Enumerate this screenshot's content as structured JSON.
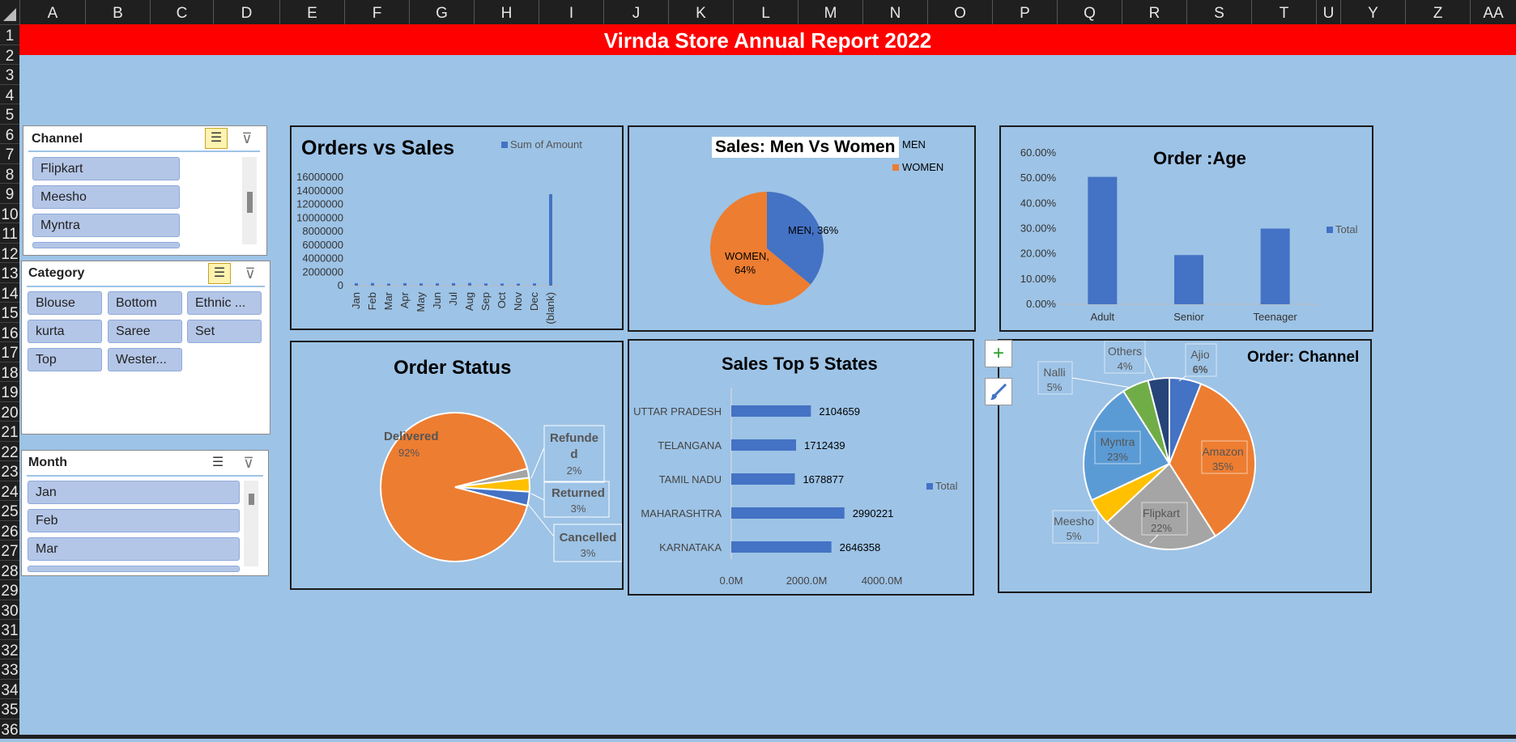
{
  "sheet": {
    "columns": [
      "A",
      "B",
      "C",
      "D",
      "E",
      "F",
      "G",
      "H",
      "I",
      "J",
      "K",
      "L",
      "M",
      "N",
      "O",
      "P",
      "Q",
      "R",
      "S",
      "T",
      "U",
      "Y",
      "Z",
      "AA"
    ],
    "rows": [
      "1",
      "2",
      "3",
      "4",
      "5",
      "6",
      "7",
      "8",
      "9",
      "10",
      "11",
      "12",
      "13",
      "14",
      "15",
      "16",
      "17",
      "18",
      "19",
      "20",
      "21",
      "22",
      "23",
      "24",
      "25",
      "26",
      "27",
      "28",
      "29",
      "30",
      "31",
      "32",
      "33",
      "34",
      "35",
      "36"
    ]
  },
  "report_title": "Virnda Store Annual Report 2022",
  "slicers": {
    "channel": {
      "title": "Channel",
      "items": [
        "Flipkart",
        "Meesho",
        "Myntra"
      ]
    },
    "category": {
      "title": "Category",
      "items": [
        "Blouse",
        "Bottom",
        "Ethnic ...",
        "kurta",
        "Saree",
        "Set",
        "Top",
        "Wester..."
      ]
    },
    "month": {
      "title": "Month",
      "items": [
        "Jan",
        "Feb",
        "Mar"
      ]
    }
  },
  "icons": {
    "multi_select": "multi-select-icon",
    "clear_filter": "clear-filter-icon",
    "add": "plus-icon",
    "style": "brush-icon"
  },
  "colors": {
    "title_bg": "#ff0000",
    "sheet_bg": "#9dc3e6",
    "blue": "#4472c4",
    "orange": "#ed7d31",
    "gray": "#a5a5a5",
    "yellow": "#ffc000",
    "lightblue": "#5b9bd5",
    "green": "#70ad47",
    "navy": "#264478"
  },
  "chart_data": [
    {
      "type": "bar",
      "title": "Orders vs Sales",
      "legend": "Sum of Amount",
      "categories": [
        "Jan",
        "Feb",
        "Mar",
        "Apr",
        "May",
        "Jun",
        "Jul",
        "Aug",
        "Sep",
        "Oct",
        "Nov",
        "Dec",
        "(blank)"
      ],
      "values": [
        350000,
        380000,
        300000,
        360000,
        330000,
        340000,
        370000,
        400000,
        320000,
        310000,
        300000,
        330000,
        13500000
      ],
      "yticks": [
        "16000000",
        "14000000",
        "12000000",
        "10000000",
        "8000000",
        "6000000",
        "4000000",
        "2000000",
        "0"
      ],
      "ylim": [
        0,
        16000000
      ]
    },
    {
      "type": "pie",
      "title": "Sales: Men Vs Women",
      "legend": [
        "MEN",
        "WOMEN"
      ],
      "slices": [
        {
          "name": "MEN",
          "value": 36,
          "label": "MEN, 36%"
        },
        {
          "name": "WOMEN",
          "value": 64,
          "label_line1": "WOMEN,",
          "label_line2": "64%"
        }
      ]
    },
    {
      "type": "bar",
      "title": "Order :Age",
      "legend": "Total",
      "categories": [
        "Adult",
        "Senior",
        "Teenager"
      ],
      "values": [
        50.5,
        19.5,
        30
      ],
      "yticks": [
        "60.00%",
        "50.00%",
        "40.00%",
        "30.00%",
        "20.00%",
        "10.00%",
        "0.00%"
      ],
      "ylim": [
        0,
        60
      ]
    },
    {
      "type": "pie",
      "title": "Order Status",
      "slices": [
        {
          "name": "Delivered",
          "value": 92,
          "pct": "92%"
        },
        {
          "name": "Refunded",
          "value": 2,
          "pct": "2%",
          "label_line1": "Refunde",
          "label_line2": "d"
        },
        {
          "name": "Returned",
          "value": 3,
          "pct": "3%"
        },
        {
          "name": "Cancelled",
          "value": 3,
          "pct": "3%"
        }
      ]
    },
    {
      "type": "bar",
      "orientation": "horizontal",
      "title": "Sales Top 5 States",
      "legend": "Total",
      "categories": [
        "UTTAR PRADESH",
        "TELANGANA",
        "TAMIL NADU",
        "MAHARASHTRA",
        "KARNATAKA"
      ],
      "values": [
        2104659,
        1712439,
        1678877,
        2990221,
        2646358
      ],
      "value_labels": [
        "2104659",
        "1712439",
        "1678877",
        "2990221",
        "2646358"
      ],
      "xticks": [
        "0.0M",
        "2000.0M",
        "4000.0M"
      ]
    },
    {
      "type": "pie",
      "title": "Order: Channel",
      "slices": [
        {
          "name": "Ajio",
          "value": 6,
          "pct": "6%"
        },
        {
          "name": "Amazon",
          "value": 35,
          "pct": "35%"
        },
        {
          "name": "Flipkart",
          "value": 22,
          "pct": "22%"
        },
        {
          "name": "Meesho",
          "value": 5,
          "pct": "5%"
        },
        {
          "name": "Myntra",
          "value": 23,
          "pct": "23%"
        },
        {
          "name": "Nalli",
          "value": 5,
          "pct": "5%"
        },
        {
          "name": "Others",
          "value": 4,
          "pct": "4%"
        }
      ]
    }
  ]
}
